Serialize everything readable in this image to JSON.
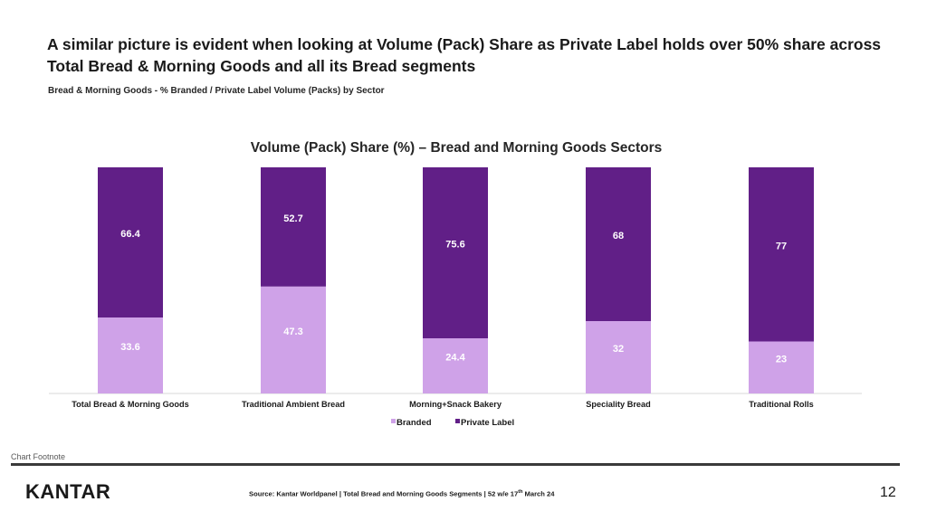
{
  "header": {
    "title": "A similar picture is evident when looking at Volume (Pack) Share as Private Label holds over 50% share across Total Bread & Morning Goods and all its Bread segments",
    "subtitle": "Bread & Morning Goods - % Branded / Private Label Volume (Packs) by Sector"
  },
  "colors": {
    "branded": "#cfa2e8",
    "private_label": "#611f87",
    "branded_label": "#ffffff",
    "private_label_label": "#ffffff"
  },
  "chart_data": {
    "type": "bar",
    "stacked": true,
    "title": "Volume (Pack) Share (%) – Bread and Morning Goods Sectors",
    "categories": [
      "Total Bread & Morning Goods",
      "Traditional Ambient Bread",
      "Morning+Snack Bakery",
      "Speciality Bread",
      "Traditional Rolls"
    ],
    "series": [
      {
        "name": "Branded",
        "values": [
          33.6,
          47.3,
          24.4,
          32,
          23
        ]
      },
      {
        "name": "Private Label",
        "values": [
          66.4,
          52.7,
          75.6,
          68,
          77
        ]
      }
    ],
    "ylim": [
      0,
      100
    ],
    "grid": false,
    "legend": "bottom",
    "xlabel": "",
    "ylabel": ""
  },
  "footer": {
    "footnote": "Chart Footnote",
    "logo": "KANTAR",
    "source_prefix": "Source: Kantar Worldpanel | Total Bread and Morning Goods Segments | 52 w/e 17",
    "source_sup": "th",
    "source_suffix": " March 24",
    "page_number": "12"
  }
}
